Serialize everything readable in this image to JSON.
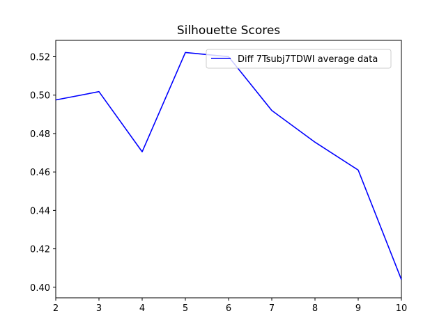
{
  "chart_data": {
    "type": "line",
    "title": "Silhouette Scores",
    "xlabel": "",
    "ylabel": "",
    "xlim": [
      2,
      10
    ],
    "ylim": [
      0.3945,
      0.5285
    ],
    "x_ticks": [
      2,
      3,
      4,
      5,
      6,
      7,
      8,
      9,
      10
    ],
    "y_ticks": [
      0.4,
      0.42,
      0.44,
      0.46,
      0.48,
      0.5,
      0.52
    ],
    "y_tick_labels": [
      "0.40",
      "0.42",
      "0.44",
      "0.46",
      "0.48",
      "0.50",
      "0.52"
    ],
    "grid": false,
    "legend": "top-right",
    "series": [
      {
        "name": "Diff 7Tsubj7TDWI average data",
        "color": "#0000ff",
        "x": [
          2,
          3,
          4,
          5,
          6,
          7,
          8,
          9,
          10
        ],
        "y": [
          0.4975,
          0.5018,
          0.4705,
          0.5222,
          0.52,
          0.492,
          0.4755,
          0.461,
          0.404
        ]
      }
    ]
  }
}
